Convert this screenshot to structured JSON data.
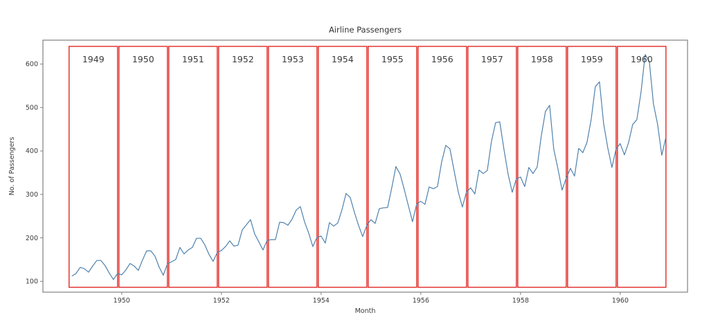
{
  "figure": {
    "background": "#ffffff"
  },
  "chart_data": {
    "type": "line",
    "title": "Airline Passengers",
    "xlabel": "Month",
    "ylabel": "No. of Passengers",
    "series": [
      {
        "name": "passengers",
        "start_year": 1949,
        "values_monthly": [
          112,
          118,
          132,
          129,
          121,
          135,
          148,
          148,
          136,
          119,
          104,
          118,
          115,
          126,
          141,
          135,
          125,
          149,
          170,
          170,
          158,
          133,
          114,
          140,
          145,
          150,
          178,
          163,
          172,
          178,
          199,
          199,
          184,
          162,
          146,
          166,
          171,
          180,
          193,
          181,
          183,
          218,
          230,
          242,
          209,
          191,
          172,
          194,
          196,
          196,
          236,
          235,
          229,
          243,
          264,
          272,
          237,
          211,
          180,
          201,
          204,
          188,
          235,
          227,
          234,
          264,
          302,
          293,
          259,
          229,
          203,
          229,
          242,
          233,
          267,
          269,
          270,
          315,
          364,
          347,
          312,
          274,
          237,
          278,
          284,
          277,
          317,
          313,
          318,
          374,
          413,
          405,
          355,
          306,
          271,
          306,
          315,
          301,
          356,
          348,
          355,
          422,
          465,
          467,
          404,
          347,
          305,
          336,
          340,
          318,
          362,
          348,
          363,
          435,
          491,
          505,
          404,
          359,
          310,
          337,
          360,
          342,
          406,
          396,
          420,
          472,
          548,
          559,
          463,
          407,
          362,
          405,
          417,
          391,
          419,
          461,
          472,
          535,
          622,
          606,
          508,
          461,
          390,
          432
        ]
      }
    ],
    "x_tick_years": [
      1950,
      1952,
      1954,
      1956,
      1958,
      1960
    ],
    "x_tick_labels": [
      "1950",
      "1952",
      "1954",
      "1956",
      "1958",
      "1960"
    ],
    "y_ticks": [
      100,
      200,
      300,
      400,
      500,
      600
    ],
    "xlim_years": [
      1948.42,
      1961.35
    ],
    "ylim": [
      75,
      655
    ],
    "grid": false,
    "legend": "none",
    "line_color": "#4e81ad",
    "spine_color": "#808080",
    "text_color": "#3a3a3a",
    "annotations": {
      "box_color": "#e02824",
      "year_boxes": [
        "1949",
        "1950",
        "1951",
        "1952",
        "1953",
        "1954",
        "1955",
        "1956",
        "1957",
        "1958",
        "1959",
        "1960"
      ]
    }
  }
}
